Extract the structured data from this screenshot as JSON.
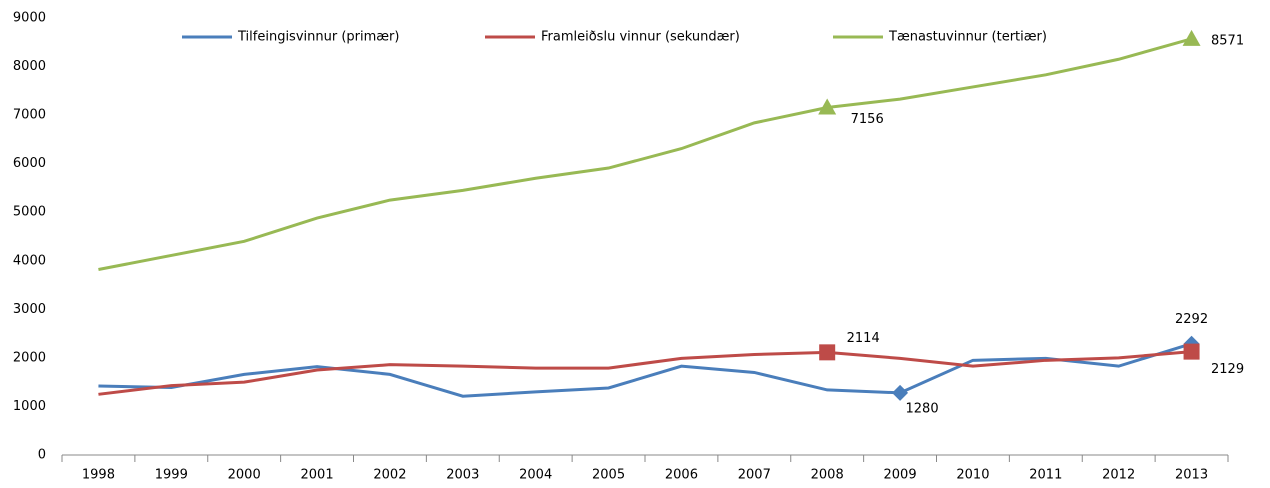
{
  "chart_data": {
    "type": "line",
    "categories": [
      "1998",
      "1999",
      "2000",
      "2001",
      "2002",
      "2003",
      "2004",
      "2005",
      "2006",
      "2007",
      "2008",
      "2009",
      "2010",
      "2011",
      "2012",
      "2013"
    ],
    "series": [
      {
        "name": "Tilfeingisvinnur (primær)",
        "color": "#4a7ebb",
        "marker": "diamond",
        "labeled_points": [
          11,
          15
        ],
        "values": [
          1420,
          1390,
          1660,
          1820,
          1660,
          1210,
          1300,
          1380,
          1830,
          1700,
          1340,
          1280,
          1950,
          1990,
          1830,
          2292
        ]
      },
      {
        "name": "Framleiðslu vinnur (sekundær)",
        "color": "#be4b48",
        "marker": "square",
        "labeled_points": [
          10,
          15
        ],
        "values": [
          1250,
          1430,
          1500,
          1750,
          1860,
          1830,
          1790,
          1790,
          1990,
          2070,
          2114,
          1990,
          1830,
          1950,
          2000,
          2129
        ]
      },
      {
        "name": "Tænastuvinnur (tertiær)",
        "color": "#98b954",
        "marker": "triangle",
        "labeled_points": [
          10,
          15
        ],
        "values": [
          3820,
          4110,
          4400,
          4880,
          5250,
          5450,
          5700,
          5910,
          6310,
          6840,
          7156,
          7330,
          7580,
          7830,
          8150,
          8571
        ]
      }
    ],
    "ylim": [
      0,
      9000
    ],
    "yticks": [
      0,
      1000,
      2000,
      3000,
      4000,
      5000,
      6000,
      7000,
      8000,
      9000
    ],
    "grid": false,
    "legend": "top"
  }
}
